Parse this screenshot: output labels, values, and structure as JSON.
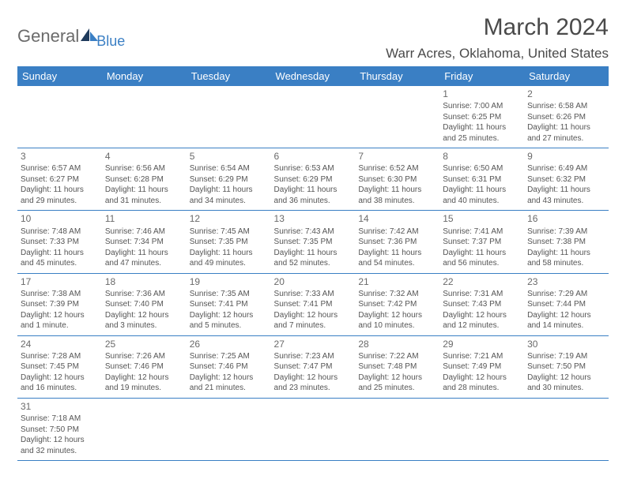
{
  "logo": {
    "general": "General",
    "blue": "Blue"
  },
  "title": "March 2024",
  "location": "Warr Acres, Oklahoma, United States",
  "day_headers": [
    "Sunday",
    "Monday",
    "Tuesday",
    "Wednesday",
    "Thursday",
    "Friday",
    "Saturday"
  ],
  "colors": {
    "header_bg": "#3a7fc4",
    "header_text": "#ffffff",
    "text": "#555555",
    "rule": "#3a7fc4"
  },
  "weeks": [
    [
      null,
      null,
      null,
      null,
      null,
      {
        "n": "1",
        "sr": "Sunrise: 7:00 AM",
        "ss": "Sunset: 6:25 PM",
        "d1": "Daylight: 11 hours",
        "d2": "and 25 minutes."
      },
      {
        "n": "2",
        "sr": "Sunrise: 6:58 AM",
        "ss": "Sunset: 6:26 PM",
        "d1": "Daylight: 11 hours",
        "d2": "and 27 minutes."
      }
    ],
    [
      {
        "n": "3",
        "sr": "Sunrise: 6:57 AM",
        "ss": "Sunset: 6:27 PM",
        "d1": "Daylight: 11 hours",
        "d2": "and 29 minutes."
      },
      {
        "n": "4",
        "sr": "Sunrise: 6:56 AM",
        "ss": "Sunset: 6:28 PM",
        "d1": "Daylight: 11 hours",
        "d2": "and 31 minutes."
      },
      {
        "n": "5",
        "sr": "Sunrise: 6:54 AM",
        "ss": "Sunset: 6:29 PM",
        "d1": "Daylight: 11 hours",
        "d2": "and 34 minutes."
      },
      {
        "n": "6",
        "sr": "Sunrise: 6:53 AM",
        "ss": "Sunset: 6:29 PM",
        "d1": "Daylight: 11 hours",
        "d2": "and 36 minutes."
      },
      {
        "n": "7",
        "sr": "Sunrise: 6:52 AM",
        "ss": "Sunset: 6:30 PM",
        "d1": "Daylight: 11 hours",
        "d2": "and 38 minutes."
      },
      {
        "n": "8",
        "sr": "Sunrise: 6:50 AM",
        "ss": "Sunset: 6:31 PM",
        "d1": "Daylight: 11 hours",
        "d2": "and 40 minutes."
      },
      {
        "n": "9",
        "sr": "Sunrise: 6:49 AM",
        "ss": "Sunset: 6:32 PM",
        "d1": "Daylight: 11 hours",
        "d2": "and 43 minutes."
      }
    ],
    [
      {
        "n": "10",
        "sr": "Sunrise: 7:48 AM",
        "ss": "Sunset: 7:33 PM",
        "d1": "Daylight: 11 hours",
        "d2": "and 45 minutes."
      },
      {
        "n": "11",
        "sr": "Sunrise: 7:46 AM",
        "ss": "Sunset: 7:34 PM",
        "d1": "Daylight: 11 hours",
        "d2": "and 47 minutes."
      },
      {
        "n": "12",
        "sr": "Sunrise: 7:45 AM",
        "ss": "Sunset: 7:35 PM",
        "d1": "Daylight: 11 hours",
        "d2": "and 49 minutes."
      },
      {
        "n": "13",
        "sr": "Sunrise: 7:43 AM",
        "ss": "Sunset: 7:35 PM",
        "d1": "Daylight: 11 hours",
        "d2": "and 52 minutes."
      },
      {
        "n": "14",
        "sr": "Sunrise: 7:42 AM",
        "ss": "Sunset: 7:36 PM",
        "d1": "Daylight: 11 hours",
        "d2": "and 54 minutes."
      },
      {
        "n": "15",
        "sr": "Sunrise: 7:41 AM",
        "ss": "Sunset: 7:37 PM",
        "d1": "Daylight: 11 hours",
        "d2": "and 56 minutes."
      },
      {
        "n": "16",
        "sr": "Sunrise: 7:39 AM",
        "ss": "Sunset: 7:38 PM",
        "d1": "Daylight: 11 hours",
        "d2": "and 58 minutes."
      }
    ],
    [
      {
        "n": "17",
        "sr": "Sunrise: 7:38 AM",
        "ss": "Sunset: 7:39 PM",
        "d1": "Daylight: 12 hours",
        "d2": "and 1 minute."
      },
      {
        "n": "18",
        "sr": "Sunrise: 7:36 AM",
        "ss": "Sunset: 7:40 PM",
        "d1": "Daylight: 12 hours",
        "d2": "and 3 minutes."
      },
      {
        "n": "19",
        "sr": "Sunrise: 7:35 AM",
        "ss": "Sunset: 7:41 PM",
        "d1": "Daylight: 12 hours",
        "d2": "and 5 minutes."
      },
      {
        "n": "20",
        "sr": "Sunrise: 7:33 AM",
        "ss": "Sunset: 7:41 PM",
        "d1": "Daylight: 12 hours",
        "d2": "and 7 minutes."
      },
      {
        "n": "21",
        "sr": "Sunrise: 7:32 AM",
        "ss": "Sunset: 7:42 PM",
        "d1": "Daylight: 12 hours",
        "d2": "and 10 minutes."
      },
      {
        "n": "22",
        "sr": "Sunrise: 7:31 AM",
        "ss": "Sunset: 7:43 PM",
        "d1": "Daylight: 12 hours",
        "d2": "and 12 minutes."
      },
      {
        "n": "23",
        "sr": "Sunrise: 7:29 AM",
        "ss": "Sunset: 7:44 PM",
        "d1": "Daylight: 12 hours",
        "d2": "and 14 minutes."
      }
    ],
    [
      {
        "n": "24",
        "sr": "Sunrise: 7:28 AM",
        "ss": "Sunset: 7:45 PM",
        "d1": "Daylight: 12 hours",
        "d2": "and 16 minutes."
      },
      {
        "n": "25",
        "sr": "Sunrise: 7:26 AM",
        "ss": "Sunset: 7:46 PM",
        "d1": "Daylight: 12 hours",
        "d2": "and 19 minutes."
      },
      {
        "n": "26",
        "sr": "Sunrise: 7:25 AM",
        "ss": "Sunset: 7:46 PM",
        "d1": "Daylight: 12 hours",
        "d2": "and 21 minutes."
      },
      {
        "n": "27",
        "sr": "Sunrise: 7:23 AM",
        "ss": "Sunset: 7:47 PM",
        "d1": "Daylight: 12 hours",
        "d2": "and 23 minutes."
      },
      {
        "n": "28",
        "sr": "Sunrise: 7:22 AM",
        "ss": "Sunset: 7:48 PM",
        "d1": "Daylight: 12 hours",
        "d2": "and 25 minutes."
      },
      {
        "n": "29",
        "sr": "Sunrise: 7:21 AM",
        "ss": "Sunset: 7:49 PM",
        "d1": "Daylight: 12 hours",
        "d2": "and 28 minutes."
      },
      {
        "n": "30",
        "sr": "Sunrise: 7:19 AM",
        "ss": "Sunset: 7:50 PM",
        "d1": "Daylight: 12 hours",
        "d2": "and 30 minutes."
      }
    ],
    [
      {
        "n": "31",
        "sr": "Sunrise: 7:18 AM",
        "ss": "Sunset: 7:50 PM",
        "d1": "Daylight: 12 hours",
        "d2": "and 32 minutes."
      },
      null,
      null,
      null,
      null,
      null,
      null
    ]
  ]
}
